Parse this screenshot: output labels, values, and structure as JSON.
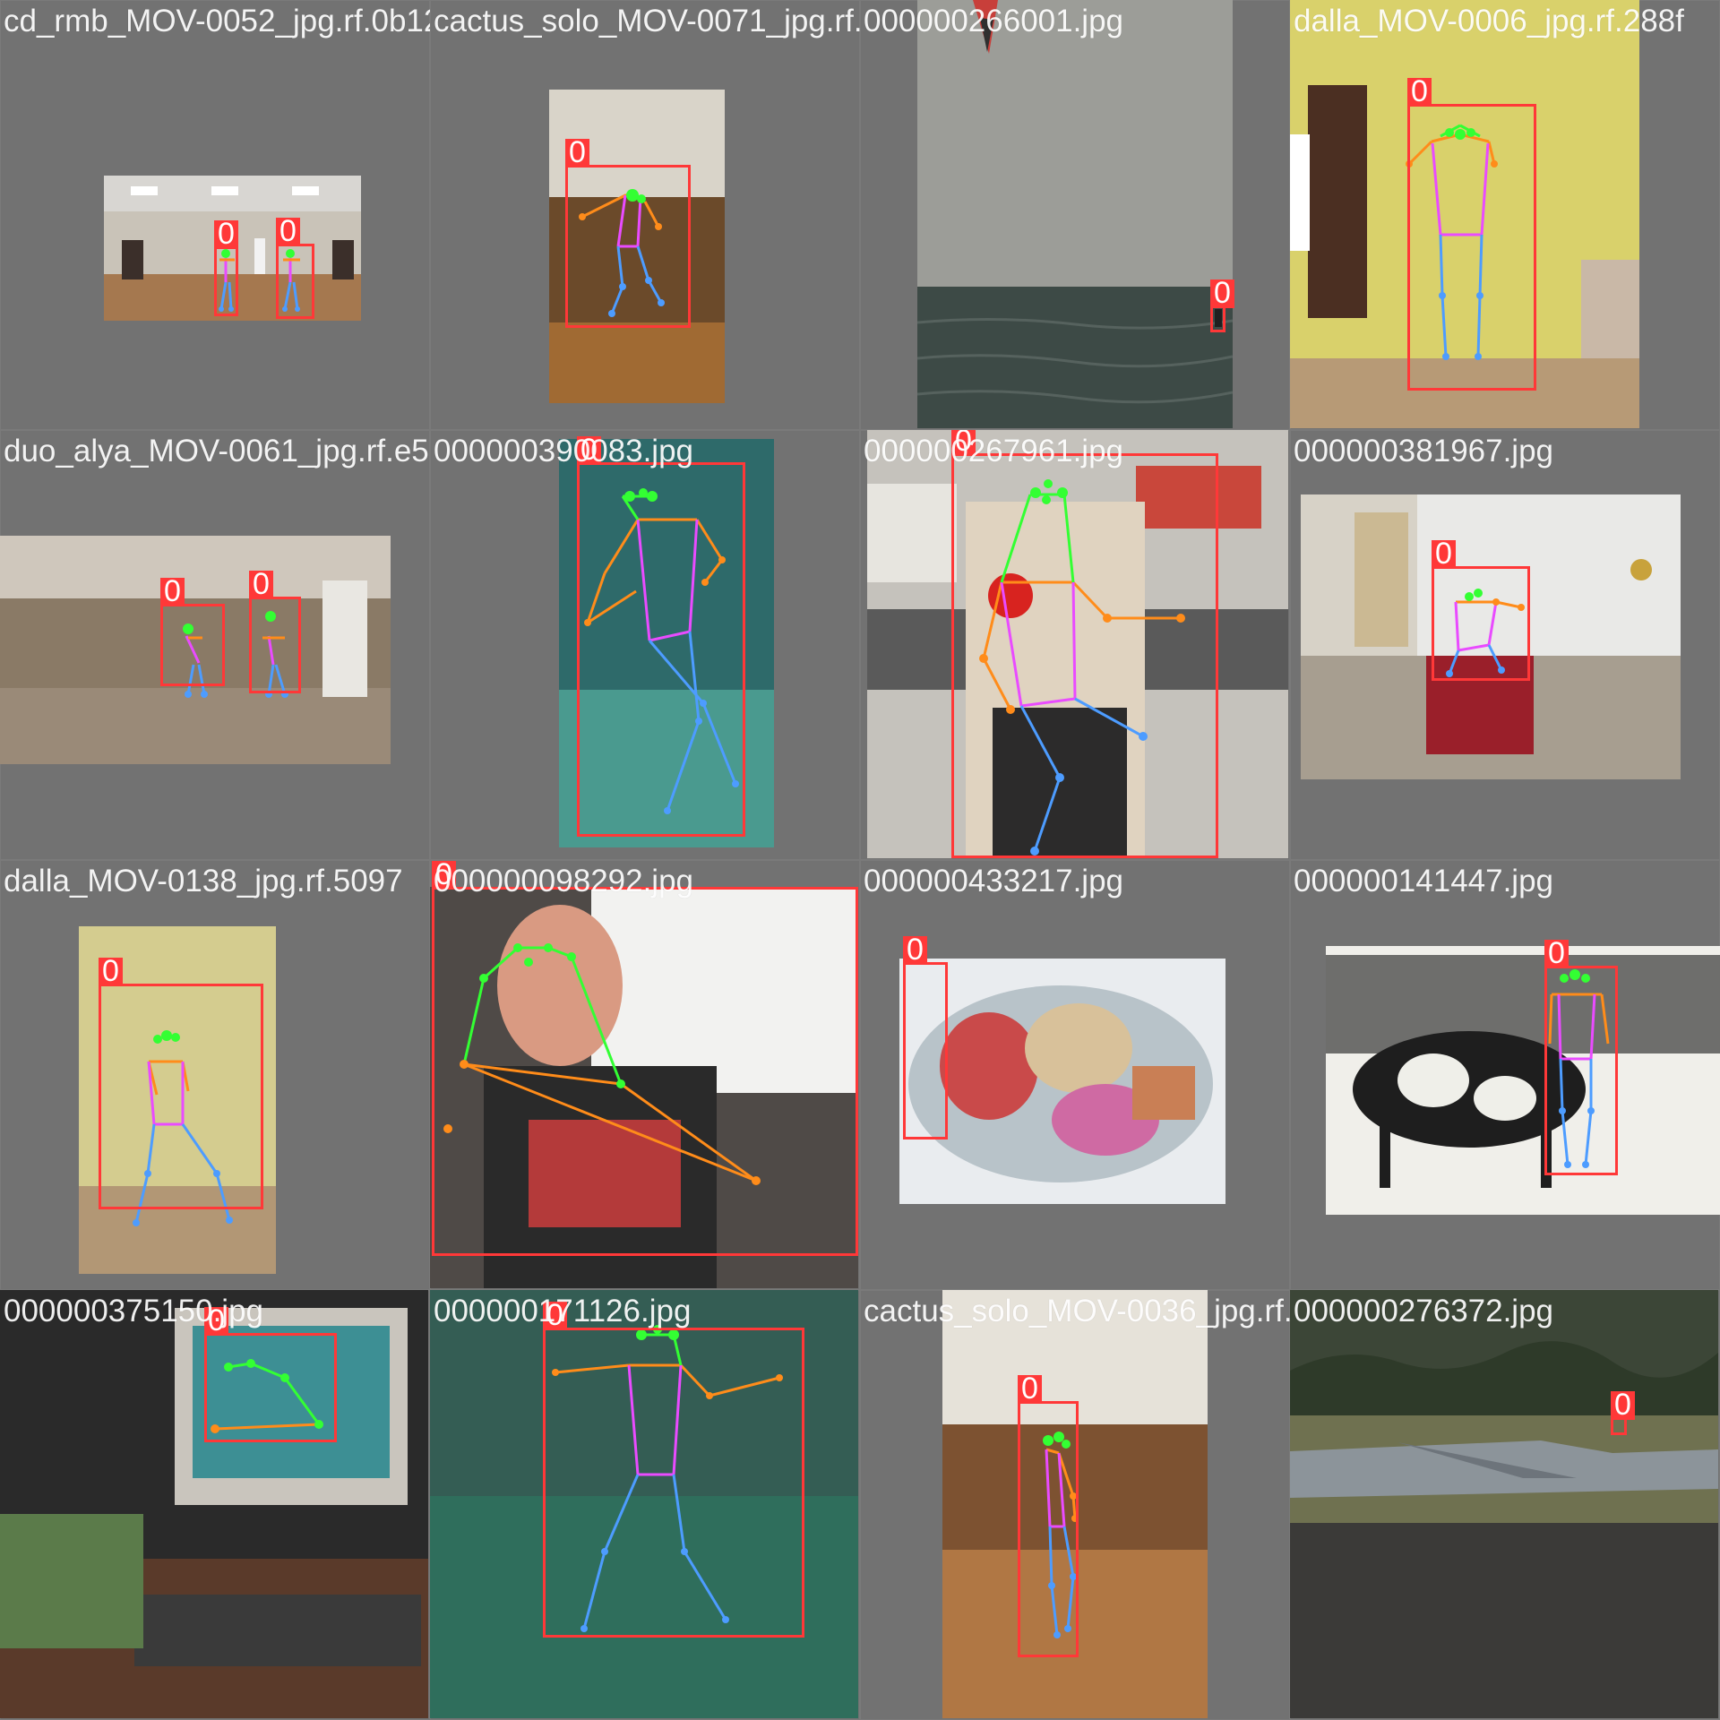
{
  "mosaic": {
    "class_label": "0",
    "colors": {
      "box": "#ff3838",
      "face": "#33ff33",
      "arms": "#ff8c1a",
      "torso": "#e94bff",
      "legs": "#4d9cff",
      "background": "#727272"
    },
    "tiles": [
      {
        "filename": "cd_rmb_MOV-0052_jpg.rf.0b1268902980483b2"
      },
      {
        "filename": "cactus_solo_MOV-0071_jpg.rf.0b0b9e263046bf"
      },
      {
        "filename": "000000266001.jpg"
      },
      {
        "filename": "dalla_MOV-0006_jpg.rf.288f"
      },
      {
        "filename": "duo_alya_MOV-0061_jpg.rf.e55b7436c083"
      },
      {
        "filename": "000000390083.jpg"
      },
      {
        "filename": "000000267961.jpg"
      },
      {
        "filename": "000000381967.jpg"
      },
      {
        "filename": "dalla_MOV-0138_jpg.rf.5097"
      },
      {
        "filename": "000000098292.jpg"
      },
      {
        "filename": "000000433217.jpg"
      },
      {
        "filename": "000000141447.jpg"
      },
      {
        "filename": "000000375150.jpg"
      },
      {
        "filename": "000000171126.jpg"
      },
      {
        "filename": "cactus_solo_MOV-0036_jpg.rf.0d2b7e3f"
      },
      {
        "filename": "000000276372.jpg"
      }
    ]
  }
}
